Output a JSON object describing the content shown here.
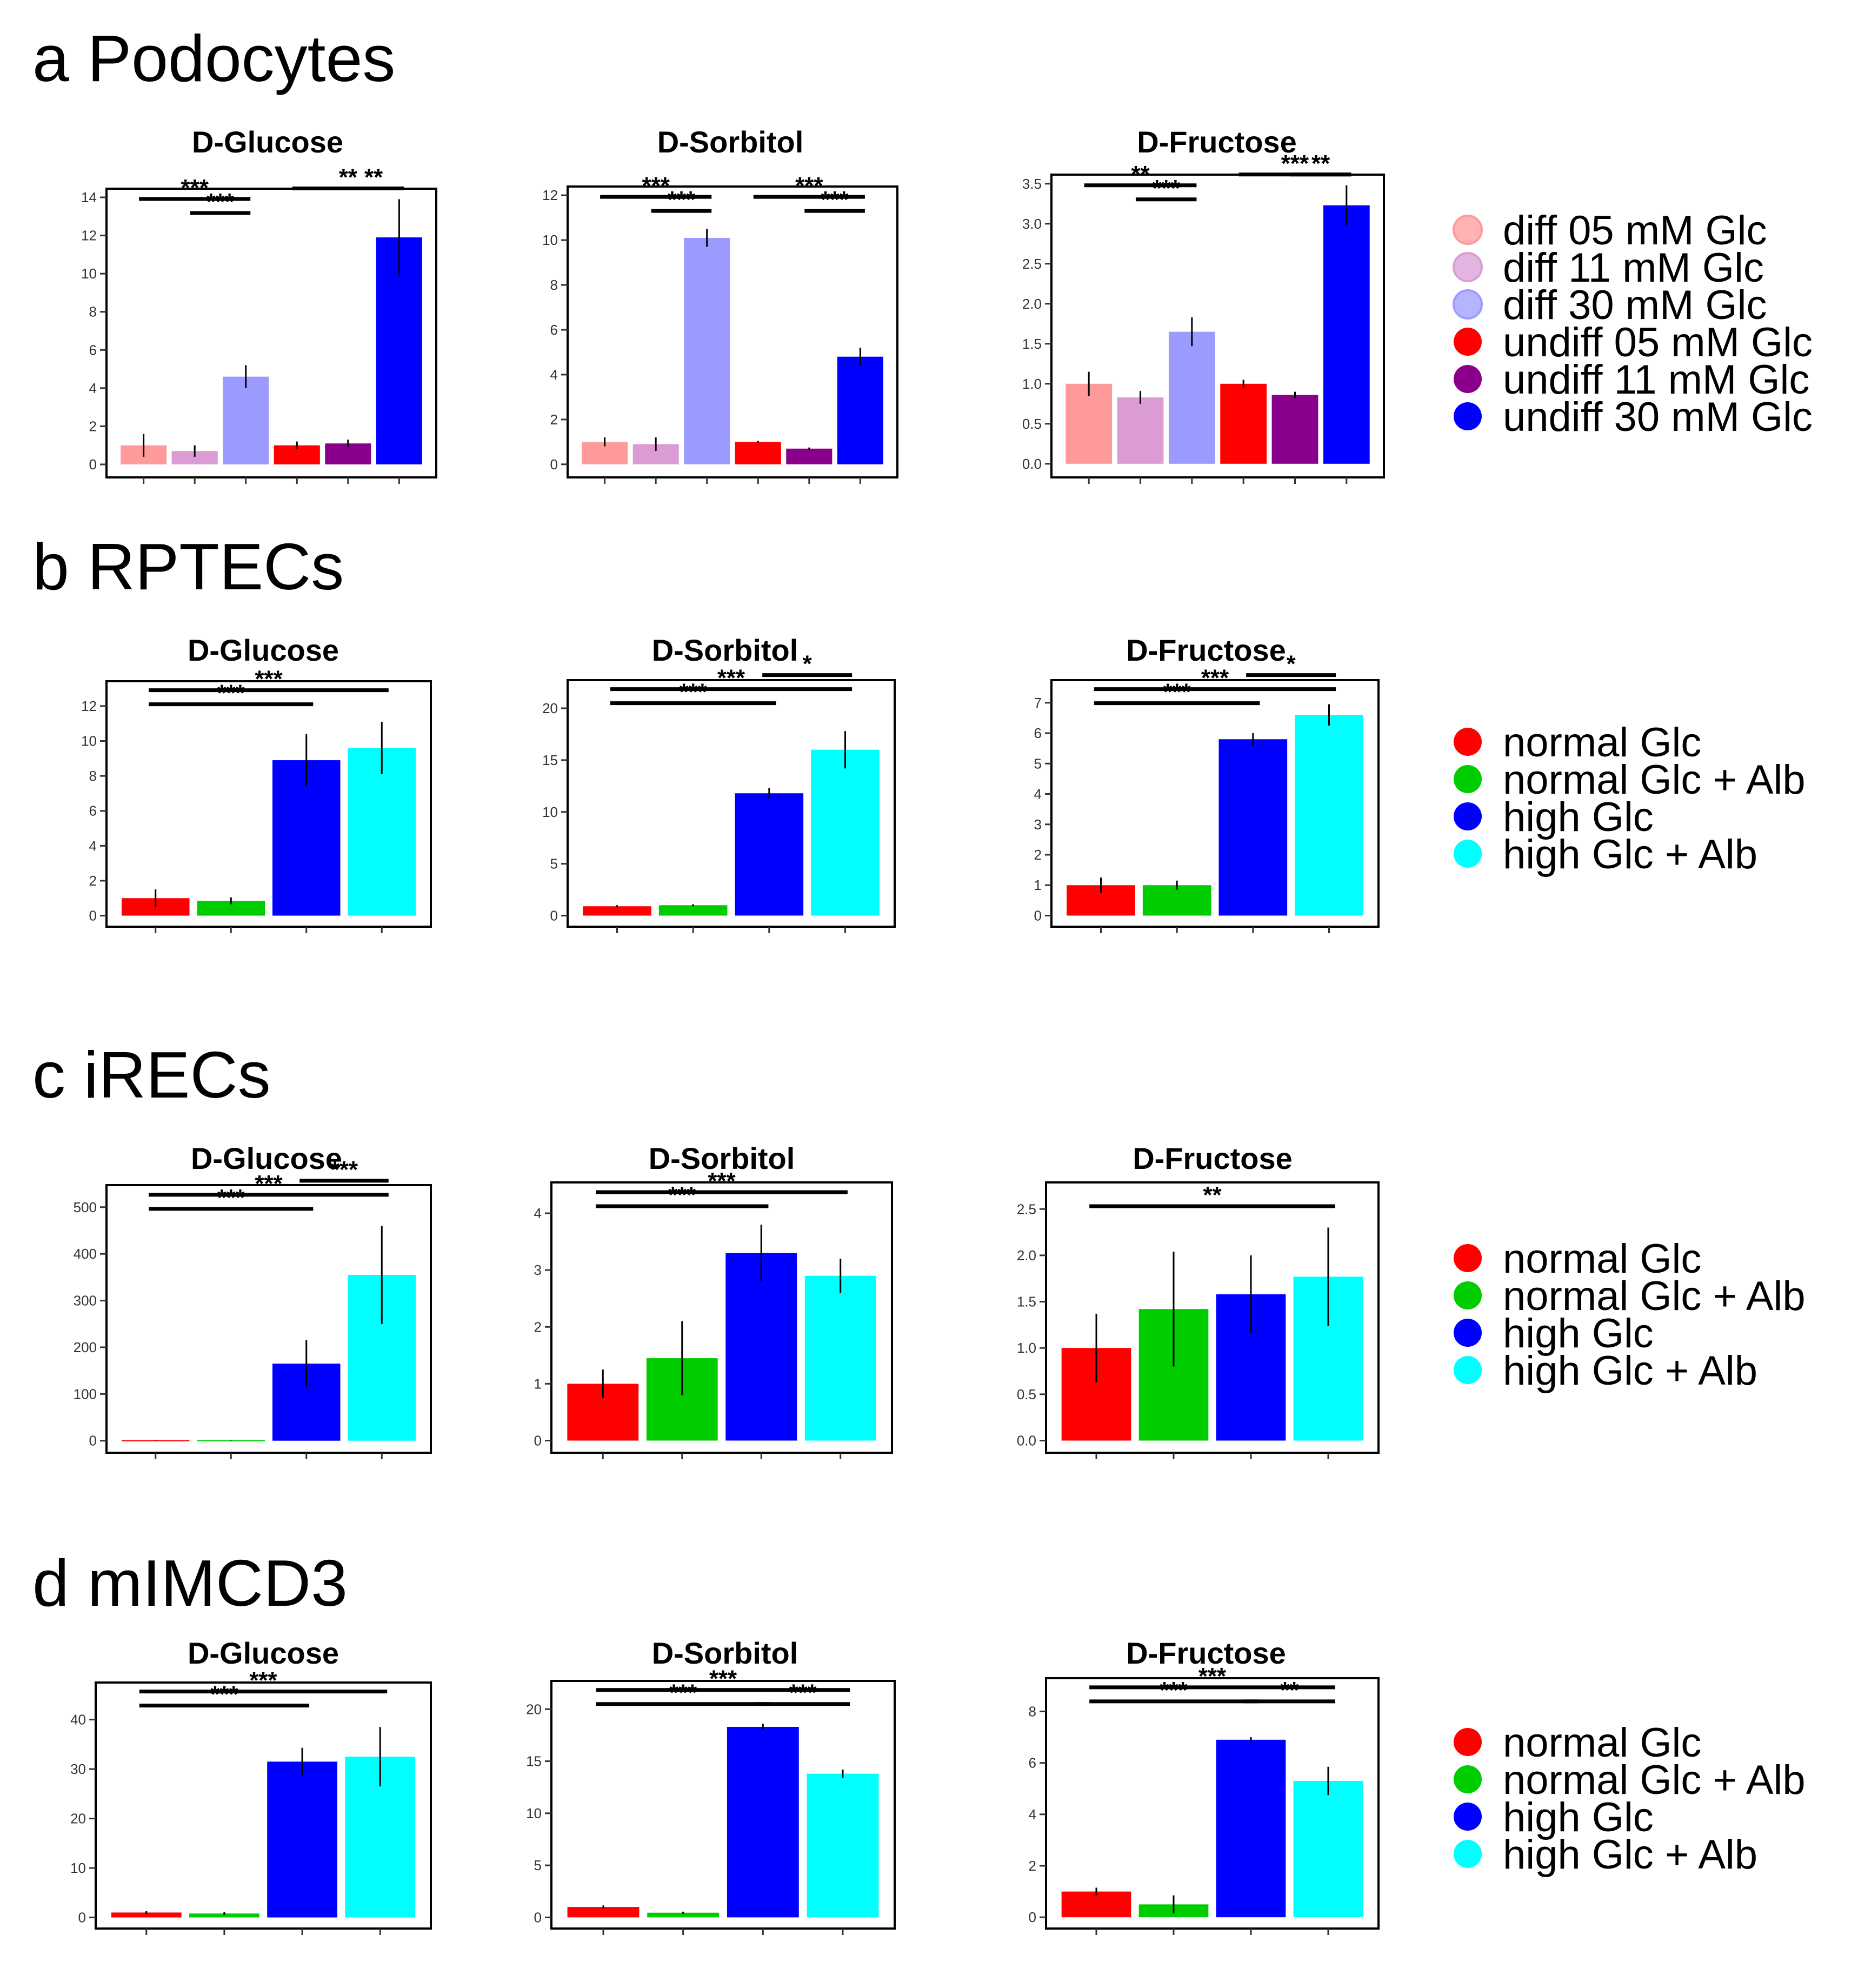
{
  "colors": {
    "diff05": "#FF9A9A",
    "diff11": "#DB9CD6",
    "diff30": "#9B9BFF",
    "undiff05": "#FF0000",
    "undiff11": "#8B008B",
    "undiff30": "#0000FF",
    "normal": "#FF0000",
    "normal_alb": "#00CD00",
    "high": "#0000FF",
    "high_alb": "#00FFFF"
  },
  "legends": {
    "podocytes": [
      {
        "label": "diff 05 mM Glc",
        "color": "#FF9A9A"
      },
      {
        "label": "diff 11 mM Glc",
        "color": "#DB9CD6"
      },
      {
        "label": "diff 30 mM Glc",
        "color": "#9B9BFF"
      },
      {
        "label": "undiff 05 mM Glc",
        "color": "#FF0000"
      },
      {
        "label": "undiff 11 mM Glc",
        "color": "#8B008B"
      },
      {
        "label": "undiff 30 mM Glc",
        "color": "#0000FF"
      }
    ],
    "treatment": [
      {
        "label": "normal Glc",
        "color": "#FF0000"
      },
      {
        "label": "normal Glc + Alb",
        "color": "#00CD00"
      },
      {
        "label": "high Glc",
        "color": "#0000FF"
      },
      {
        "label": "high Glc + Alb",
        "color": "#00FFFF"
      }
    ]
  },
  "chart_data": [
    {
      "row": "a",
      "row_title": "Podocytes",
      "legend": "podocytes",
      "panels": [
        {
          "type": "bar",
          "title": "D-Glucose",
          "ylim": [
            0,
            14
          ],
          "ticks": [
            "0",
            "2",
            "4",
            "6",
            "8",
            "10",
            "12",
            "14"
          ],
          "tick_values": [
            0,
            2,
            4,
            6,
            8,
            10,
            12,
            14
          ],
          "values": [
            1.0,
            0.7,
            4.6,
            1.0,
            1.1,
            11.9
          ],
          "errors": [
            0.6,
            0.3,
            0.6,
            0.2,
            0.2,
            2.0
          ],
          "sig": [
            {
              "from": 0,
              "to": 2,
              "label": "***",
              "level": 2
            },
            {
              "from": 1,
              "to": 2,
              "label": "***",
              "level": 1
            },
            {
              "from": 3,
              "to": 5,
              "label": "**",
              "level": 2
            },
            {
              "from": 4,
              "to": 5,
              "label": "**",
              "level": 1
            }
          ]
        },
        {
          "type": "bar",
          "title": "D-Sorbitol",
          "ylim": [
            0,
            12
          ],
          "ticks": [
            "0",
            "2",
            "4",
            "6",
            "8",
            "10",
            "12"
          ],
          "tick_values": [
            0,
            2,
            4,
            6,
            8,
            10,
            12
          ],
          "values": [
            1.0,
            0.9,
            10.1,
            1.0,
            0.7,
            4.8
          ],
          "errors": [
            0.2,
            0.3,
            0.4,
            0.05,
            0.05,
            0.4
          ],
          "sig": [
            {
              "from": 0,
              "to": 2,
              "label": "***",
              "level": 2
            },
            {
              "from": 1,
              "to": 2,
              "label": "***",
              "level": 1
            },
            {
              "from": 3,
              "to": 5,
              "label": "***",
              "level": 2
            },
            {
              "from": 4,
              "to": 5,
              "label": "***",
              "level": 1
            }
          ]
        },
        {
          "type": "bar",
          "title": "D-Fructose",
          "ylim": [
            0,
            3.5
          ],
          "ticks": [
            "0.0",
            "0.5",
            "1.0",
            "1.5",
            "2.0",
            "2.5",
            "3.0",
            "3.5"
          ],
          "tick_values": [
            0,
            0.5,
            1,
            1.5,
            2,
            2.5,
            3,
            3.5
          ],
          "values": [
            1.0,
            0.83,
            1.65,
            1.0,
            0.86,
            3.23
          ],
          "errors": [
            0.15,
            0.08,
            0.18,
            0.05,
            0.04,
            0.25
          ],
          "sig": [
            {
              "from": 0,
              "to": 2,
              "label": "**",
              "level": 2
            },
            {
              "from": 1,
              "to": 2,
              "label": "***",
              "level": 1
            },
            {
              "from": 3,
              "to": 5,
              "label": "***",
              "level": 2
            },
            {
              "from": 4,
              "to": 5,
              "label": "**",
              "level": 1
            }
          ]
        }
      ]
    },
    {
      "row": "b",
      "row_title": "RPTECs",
      "legend": "treatment",
      "panels": [
        {
          "type": "bar",
          "title": "D-Glucose",
          "ylim": [
            0,
            13
          ],
          "ticks": [
            "0",
            "2",
            "4",
            "6",
            "8",
            "10",
            "12"
          ],
          "tick_values": [
            0,
            2,
            4,
            6,
            8,
            10,
            12
          ],
          "values": [
            1.0,
            0.85,
            8.9,
            9.6
          ],
          "errors": [
            0.5,
            0.2,
            1.5,
            1.5
          ],
          "sig": [
            {
              "from": 0,
              "to": 2,
              "label": "***",
              "level": 1
            },
            {
              "from": 0,
              "to": 3,
              "label": "***",
              "level": 2
            }
          ]
        },
        {
          "type": "bar",
          "title": "D-Sorbitol",
          "ylim": [
            0,
            22
          ],
          "ticks": [
            "0",
            "5",
            "10",
            "15",
            "20"
          ],
          "tick_values": [
            0,
            5,
            10,
            15,
            20
          ],
          "values": [
            0.9,
            1.0,
            11.8,
            16.0
          ],
          "errors": [
            0.1,
            0.1,
            0.5,
            1.8
          ],
          "sig": [
            {
              "from": 0,
              "to": 2,
              "label": "***",
              "level": 1
            },
            {
              "from": 0,
              "to": 3,
              "label": "***",
              "level": 2
            },
            {
              "from": 2,
              "to": 3,
              "label": "*",
              "level": 3
            }
          ]
        },
        {
          "type": "bar",
          "title": "D-Fructose",
          "ylim": [
            0,
            7.5
          ],
          "ticks": [
            "0",
            "1",
            "2",
            "3",
            "4",
            "5",
            "6",
            "7"
          ],
          "tick_values": [
            0,
            1,
            2,
            3,
            4,
            5,
            6,
            7
          ],
          "values": [
            1.0,
            1.0,
            5.8,
            6.6
          ],
          "errors": [
            0.25,
            0.15,
            0.2,
            0.35
          ],
          "sig": [
            {
              "from": 0,
              "to": 2,
              "label": "***",
              "level": 1
            },
            {
              "from": 0,
              "to": 3,
              "label": "***",
              "level": 2
            },
            {
              "from": 2,
              "to": 3,
              "label": "*",
              "level": 3
            }
          ]
        }
      ]
    },
    {
      "row": "c",
      "row_title": "iRECs",
      "legend": "treatment",
      "panels": [
        {
          "type": "bar",
          "title": "D-Glucose",
          "ylim": [
            0,
            530
          ],
          "ticks": [
            "0",
            "100",
            "200",
            "300",
            "400",
            "500"
          ],
          "tick_values": [
            0,
            100,
            200,
            300,
            400,
            500
          ],
          "values": [
            1,
            1,
            165,
            355
          ],
          "errors": [
            0.5,
            0.5,
            50,
            105
          ],
          "sig": [
            {
              "from": 0,
              "to": 2,
              "label": "***",
              "level": 1
            },
            {
              "from": 0,
              "to": 3,
              "label": "***",
              "level": 2
            },
            {
              "from": 2,
              "to": 3,
              "label": "***",
              "level": 3
            }
          ]
        },
        {
          "type": "bar",
          "title": "D-Sorbitol",
          "ylim": [
            0,
            4.4
          ],
          "ticks": [
            "0",
            "1",
            "2",
            "3",
            "4"
          ],
          "tick_values": [
            0,
            1,
            2,
            3,
            4
          ],
          "values": [
            1.0,
            1.45,
            3.3,
            2.9
          ],
          "errors": [
            0.25,
            0.65,
            0.5,
            0.3
          ],
          "sig": [
            {
              "from": 0,
              "to": 2,
              "label": "***",
              "level": 1
            },
            {
              "from": 0,
              "to": 3,
              "label": "***",
              "level": 2
            }
          ]
        },
        {
          "type": "bar",
          "title": "D-Fructose",
          "ylim": [
            0,
            2.7
          ],
          "ticks": [
            "0.0",
            "0.5",
            "1.0",
            "1.5",
            "2.0",
            "2.5"
          ],
          "tick_values": [
            0,
            0.5,
            1,
            1.5,
            2,
            2.5
          ],
          "values": [
            1.0,
            1.42,
            1.58,
            1.77
          ],
          "errors": [
            0.37,
            0.62,
            0.42,
            0.53
          ],
          "sig": [
            {
              "from": 0,
              "to": 3,
              "label": "**",
              "level": 1
            }
          ]
        }
      ]
    },
    {
      "row": "d",
      "row_title": "mIMCD3",
      "legend": "treatment",
      "panels": [
        {
          "type": "bar",
          "title": "D-Glucose",
          "ylim": [
            0,
            46
          ],
          "ticks": [
            "0",
            "10",
            "20",
            "30",
            "40"
          ],
          "tick_values": [
            0,
            10,
            20,
            30,
            40
          ],
          "values": [
            1.0,
            0.8,
            31.5,
            32.5
          ],
          "errors": [
            0.3,
            0.3,
            2.8,
            6.0
          ],
          "sig": [
            {
              "from": 0,
              "to": 2,
              "label": "***",
              "level": 1
            },
            {
              "from": 0,
              "to": 3,
              "label": "***",
              "level": 2
            }
          ]
        },
        {
          "type": "bar",
          "title": "D-Sorbitol",
          "ylim": [
            0,
            22
          ],
          "ticks": [
            "0",
            "5",
            "10",
            "15",
            "20"
          ],
          "tick_values": [
            0,
            5,
            10,
            15,
            20
          ],
          "values": [
            1.0,
            0.45,
            18.3,
            13.8
          ],
          "errors": [
            0.15,
            0.1,
            0.3,
            0.4
          ],
          "sig": [
            {
              "from": 0,
              "to": 2,
              "label": "***",
              "level": 1
            },
            {
              "from": 0,
              "to": 3,
              "label": "***",
              "level": 2
            },
            {
              "from": 2,
              "to": 3,
              "label": "***",
              "level": 1
            }
          ]
        },
        {
          "type": "bar",
          "title": "D-Fructose",
          "ylim": [
            0,
            9
          ],
          "ticks": [
            "0",
            "2",
            "4",
            "6",
            "8"
          ],
          "tick_values": [
            0,
            2,
            4,
            6,
            8
          ],
          "values": [
            1.0,
            0.5,
            6.9,
            5.3
          ],
          "errors": [
            0.15,
            0.35,
            0.1,
            0.55
          ],
          "sig": [
            {
              "from": 0,
              "to": 2,
              "label": "***",
              "level": 1
            },
            {
              "from": 0,
              "to": 3,
              "label": "***",
              "level": 2
            },
            {
              "from": 2,
              "to": 3,
              "label": "**",
              "level": 1
            }
          ]
        }
      ]
    }
  ]
}
